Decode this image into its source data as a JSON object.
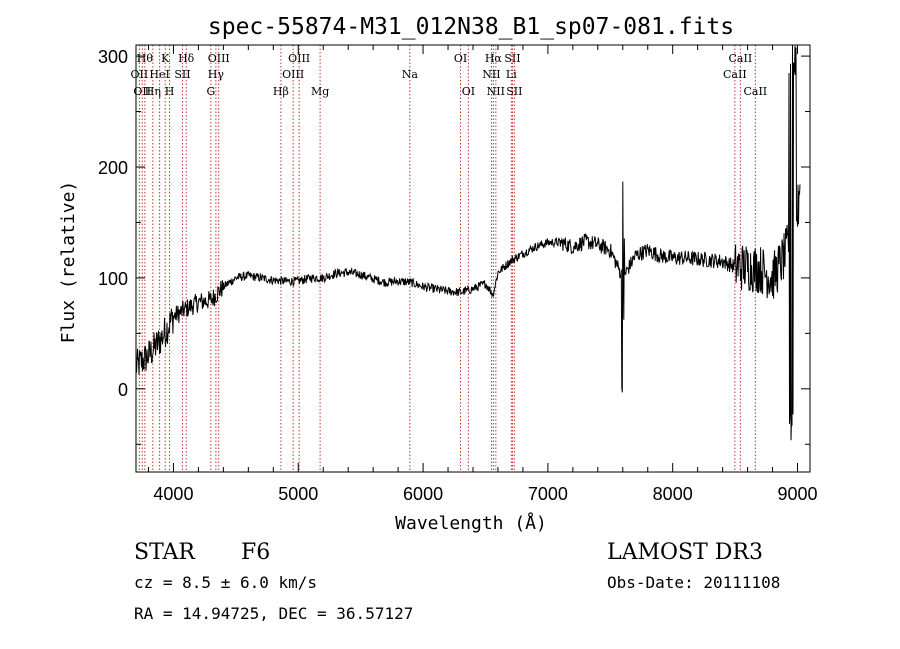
{
  "chart_data": {
    "type": "line",
    "title": "spec-55874-M31_012N38_B1_sp07-081.fits",
    "xlabel": "Wavelength (Å)",
    "ylabel": "Flux (relative)",
    "xlim": [
      3700,
      9100
    ],
    "ylim": [
      -75,
      310
    ],
    "xticks": [
      4000,
      5000,
      6000,
      7000,
      8000,
      9000
    ],
    "yticks": [
      0,
      100,
      200,
      300
    ],
    "grid": false,
    "series": [
      {
        "name": "spectrum",
        "x": [
          3700,
          3800,
          3900,
          4000,
          4100,
          4200,
          4300,
          4400,
          4500,
          4600,
          4700,
          4800,
          4900,
          5000,
          5100,
          5200,
          5300,
          5400,
          5500,
          5600,
          5700,
          5800,
          5900,
          6000,
          6100,
          6200,
          6300,
          6400,
          6500,
          6560,
          6600,
          6700,
          6800,
          6900,
          7000,
          7100,
          7200,
          7300,
          7400,
          7500,
          7600,
          7700,
          7800,
          7900,
          8000,
          8100,
          8200,
          8300,
          8400,
          8500,
          8600,
          8700,
          8800,
          8900,
          9000,
          9100
        ],
        "y": [
          20,
          30,
          45,
          65,
          72,
          78,
          80,
          92,
          100,
          102,
          100,
          98,
          97,
          97,
          100,
          100,
          104,
          105,
          103,
          99,
          96,
          97,
          96,
          92,
          90,
          88,
          87,
          90,
          95,
          85,
          105,
          115,
          122,
          128,
          132,
          132,
          128,
          133,
          130,
          125,
          100,
          120,
          125,
          120,
          118,
          118,
          117,
          116,
          115,
          110,
          110,
          108,
          100,
          120,
          160,
          200
        ]
      }
    ],
    "line_labels": [
      {
        "x": 3727,
        "label": "OII",
        "row": 2
      },
      {
        "x": 3750,
        "label": "OII",
        "row": 3
      },
      {
        "x": 3771,
        "label": "Hθ",
        "row": 1
      },
      {
        "x": 3835,
        "label": "Hη",
        "row": 3
      },
      {
        "x": 3889,
        "label": "HeI",
        "row": 2
      },
      {
        "x": 3934,
        "label": "K",
        "row": 1
      },
      {
        "x": 3969,
        "label": "H",
        "row": 3
      },
      {
        "x": 4072,
        "label": "SII",
        "row": 2
      },
      {
        "x": 4102,
        "label": "Hδ",
        "row": 1
      },
      {
        "x": 4300,
        "label": "G",
        "row": 3
      },
      {
        "x": 4340,
        "label": "Hγ",
        "row": 2
      },
      {
        "x": 4363,
        "label": "OIII",
        "row": 1
      },
      {
        "x": 4861,
        "label": "Hβ",
        "row": 3
      },
      {
        "x": 4959,
        "label": "OIII",
        "row": 2
      },
      {
        "x": 5007,
        "label": "OIII",
        "row": 1
      },
      {
        "x": 5175,
        "label": "Mg",
        "row": 3
      },
      {
        "x": 5894,
        "label": "Na",
        "row": 2
      },
      {
        "x": 6300,
        "label": "OI",
        "row": 1
      },
      {
        "x": 6363,
        "label": "OI",
        "row": 3
      },
      {
        "x": 6548,
        "label": "NII",
        "row": 2
      },
      {
        "x": 6563,
        "label": "Hα",
        "row": 1
      },
      {
        "x": 6583,
        "label": "NII",
        "row": 3
      },
      {
        "x": 6707,
        "label": "Li",
        "row": 2
      },
      {
        "x": 6716,
        "label": "SII",
        "row": 1
      },
      {
        "x": 6731,
        "label": "SII",
        "row": 3
      },
      {
        "x": 8498,
        "label": "CaII",
        "row": 2
      },
      {
        "x": 8542,
        "label": "CaII",
        "row": 1
      },
      {
        "x": 8662,
        "label": "CaII",
        "row": 3
      }
    ]
  },
  "info": {
    "obj_class": "STAR",
    "subclass": "F6",
    "velocity": "cz = 8.5 ± 6.0 km/s",
    "coords": "RA =  14.94725, DEC =  36.57127",
    "survey": "LAMOST DR3",
    "obs_date": "Obs-Date: 20111108"
  }
}
